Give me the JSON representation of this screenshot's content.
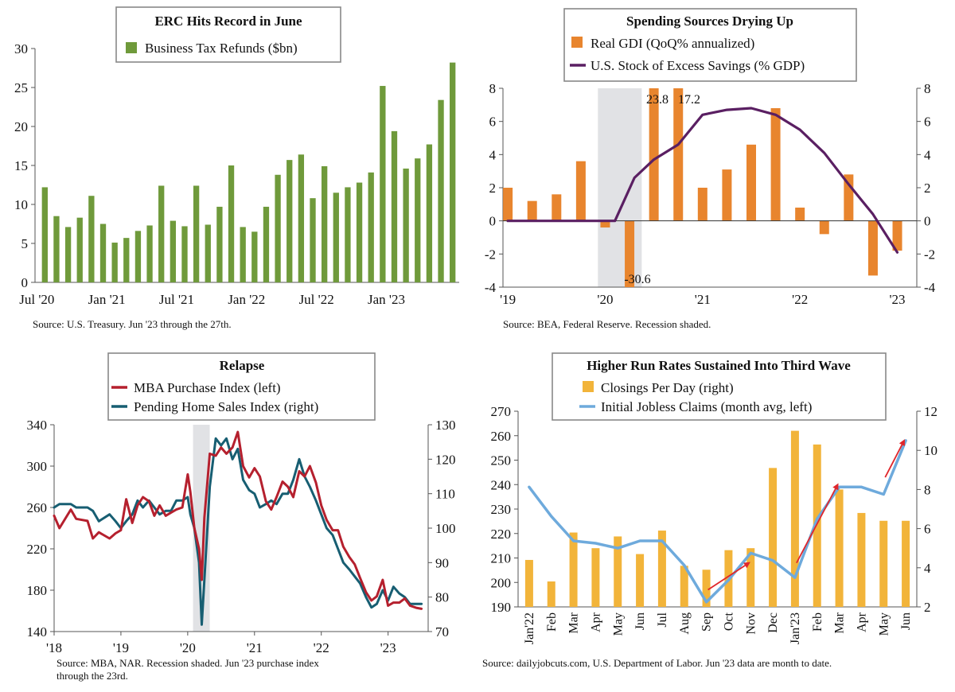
{
  "chart_data": [
    {
      "type": "bar",
      "title": "ERC Hits Record in June",
      "series": [
        {
          "name": "Business Tax Refunds ($bn)",
          "values": [
            12.2,
            8.5,
            7.1,
            8.3,
            11.1,
            7.5,
            5.1,
            5.7,
            6.6,
            7.3,
            12.4,
            7.9,
            7.2,
            12.4,
            7.4,
            9.7,
            15.0,
            7.1,
            6.5,
            9.7,
            13.8,
            15.7,
            16.4,
            10.8,
            14.9,
            11.5,
            12.2,
            12.8,
            14.1,
            25.2,
            19.4,
            14.6,
            15.9,
            17.7,
            23.4,
            28.2
          ]
        }
      ],
      "x_tick_labels": [
        "Jul '20",
        "Jan '21",
        "Jul '21",
        "Jan '22",
        "Jul '22",
        "Jan '23"
      ],
      "y_ticks": [
        "0",
        "5",
        "10",
        "15",
        "20",
        "25",
        "30"
      ],
      "ylim": [
        0,
        30
      ],
      "bar_color": "#6f9a3b",
      "source": "Source: U.S. Treasury. Jun '23 through the 27th."
    },
    {
      "type": "bar",
      "title": "Spending Sources Drying Up",
      "series": [
        {
          "name": "Real GDI (QoQ% annualized)",
          "type": "bar",
          "x": [
            2019.0,
            2019.25,
            2019.5,
            2019.75,
            2020.0,
            2020.25,
            2020.5,
            2020.75,
            2021.0,
            2021.25,
            2021.5,
            2021.75,
            2022.0,
            2022.25,
            2022.5,
            2022.75,
            2023.0
          ],
          "values": [
            2.0,
            1.2,
            1.6,
            3.6,
            -0.4,
            -30.6,
            23.8,
            17.2,
            2.0,
            3.1,
            4.6,
            6.8,
            0.8,
            -0.8,
            2.8,
            -3.3,
            -1.8
          ],
          "color": "#e8852e"
        },
        {
          "name": "U.S. Stock of Excess Savings (% GDP)",
          "type": "line",
          "x": [
            2019.0,
            2019.5,
            2020.0,
            2020.1,
            2020.3,
            2020.5,
            2020.75,
            2021.0,
            2021.25,
            2021.5,
            2021.75,
            2022.0,
            2022.25,
            2022.5,
            2022.75,
            2023.0
          ],
          "values": [
            0.0,
            0.0,
            0.0,
            0.0,
            2.6,
            3.7,
            4.6,
            6.4,
            6.7,
            6.8,
            6.4,
            5.5,
            4.1,
            2.2,
            0.4,
            -1.9
          ],
          "color": "#5a1f62"
        }
      ],
      "annotations": [
        "23.8",
        "17.2",
        "-30.6"
      ],
      "x_tick_labels": [
        "'19",
        "'20",
        "'21",
        "'22",
        "'23"
      ],
      "y_ticks_left": [
        "8",
        "6",
        "4",
        "2",
        "0",
        "-2",
        "-4"
      ],
      "y_ticks_right": [
        "8",
        "6",
        "4",
        "2",
        "0",
        "-2",
        "-4"
      ],
      "ylim": [
        -4,
        8
      ],
      "xlim": [
        2018.95,
        2023.2
      ],
      "recession": [
        2019.925,
        2020.375
      ],
      "source": "Source: BEA, Federal Reserve. Recession shaded."
    },
    {
      "type": "line",
      "title": "Relapse",
      "series": [
        {
          "name": "MBA Purchase Index (left)",
          "axis": "left",
          "color": "#b5202e",
          "x": [
            2018.0,
            2018.08,
            2018.25,
            2018.33,
            2018.5,
            2018.58,
            2018.67,
            2018.83,
            2018.92,
            2019.0,
            2019.08,
            2019.17,
            2019.25,
            2019.33,
            2019.42,
            2019.5,
            2019.58,
            2019.67,
            2019.75,
            2019.83,
            2019.92,
            2020.0,
            2020.04,
            2020.1,
            2020.17,
            2020.21,
            2020.25,
            2020.33,
            2020.42,
            2020.5,
            2020.58,
            2020.67,
            2020.75,
            2020.83,
            2020.92,
            2021.0,
            2021.08,
            2021.17,
            2021.25,
            2021.33,
            2021.42,
            2021.5,
            2021.58,
            2021.67,
            2021.75,
            2021.83,
            2021.92,
            2022.0,
            2022.08,
            2022.17,
            2022.25,
            2022.33,
            2022.42,
            2022.5,
            2022.58,
            2022.67,
            2022.75,
            2022.83,
            2022.92,
            2023.0,
            2023.08,
            2023.17,
            2023.25,
            2023.33,
            2023.42,
            2023.5
          ],
          "values": [
            252,
            240,
            258,
            249,
            247,
            230,
            236,
            230,
            235,
            238,
            268,
            245,
            262,
            270,
            266,
            252,
            262,
            252,
            255,
            258,
            260,
            292,
            275,
            240,
            220,
            190,
            250,
            312,
            310,
            318,
            312,
            318,
            333,
            300,
            289,
            298,
            290,
            266,
            258,
            270,
            285,
            280,
            270,
            295,
            290,
            300,
            284,
            262,
            248,
            238,
            238,
            222,
            212,
            205,
            192,
            178,
            170,
            174,
            190,
            165,
            168,
            168,
            172,
            165,
            163,
            162
          ]
        },
        {
          "name": "Pending Home Sales Index (right)",
          "axis": "right",
          "color": "#175e72",
          "x": [
            2018.0,
            2018.08,
            2018.25,
            2018.33,
            2018.5,
            2018.58,
            2018.67,
            2018.83,
            2018.92,
            2019.0,
            2019.08,
            2019.17,
            2019.25,
            2019.33,
            2019.42,
            2019.5,
            2019.58,
            2019.67,
            2019.75,
            2019.83,
            2019.92,
            2020.0,
            2020.04,
            2020.1,
            2020.17,
            2020.21,
            2020.25,
            2020.33,
            2020.42,
            2020.5,
            2020.58,
            2020.67,
            2020.75,
            2020.83,
            2020.92,
            2021.0,
            2021.08,
            2021.17,
            2021.25,
            2021.33,
            2021.42,
            2021.5,
            2021.58,
            2021.67,
            2021.75,
            2021.83,
            2021.92,
            2022.0,
            2022.08,
            2022.17,
            2022.25,
            2022.33,
            2022.42,
            2022.5,
            2022.58,
            2022.67,
            2022.75,
            2022.83,
            2022.92,
            2023.0,
            2023.08,
            2023.17,
            2023.25,
            2023.33,
            2023.42,
            2023.5
          ],
          "values": [
            106,
            107,
            107,
            106,
            106,
            105,
            102,
            104,
            102,
            100,
            102,
            104,
            108,
            106,
            108,
            106,
            104,
            105,
            105,
            108,
            108,
            109,
            104,
            100,
            90,
            72,
            85,
            112,
            126,
            124,
            126,
            120,
            123,
            114,
            111,
            110,
            106,
            107,
            108,
            107,
            110,
            110,
            114,
            120,
            115,
            112,
            108,
            104,
            100,
            98,
            94,
            90,
            88,
            86,
            84,
            80,
            77,
            78,
            82,
            79,
            83,
            81,
            80,
            78,
            78,
            78
          ]
        }
      ],
      "x_tick_labels": [
        "'18",
        "'19",
        "'20",
        "'21",
        "'22",
        "'23"
      ],
      "y_ticks_left": [
        "340",
        "300",
        "260",
        "220",
        "180",
        "140"
      ],
      "y_ticks_right": [
        "130",
        "120",
        "110",
        "100",
        "90",
        "80",
        "70"
      ],
      "ylim_left": [
        140,
        340
      ],
      "ylim_right": [
        70,
        130
      ],
      "xlim": [
        2018.0,
        2023.6
      ],
      "recession": [
        2020.08,
        2020.33
      ],
      "source": "Source: MBA, NAR. Recession shaded. Jun '23 purchase index through the 23rd."
    },
    {
      "type": "bar",
      "title": "Higher Run Rates Sustained Into Third Wave",
      "categories": [
        "Jan'22",
        "Feb",
        "Mar",
        "Apr",
        "May",
        "Jun",
        "Jul",
        "Aug",
        "Sep",
        "Oct",
        "Nov",
        "Dec",
        "Jan'23",
        "Feb",
        "Mar",
        "Apr",
        "May",
        "Jun"
      ],
      "series": [
        {
          "name": "Closings Per Day (right)",
          "type": "bar",
          "axis": "right",
          "color": "#f2b43a",
          "values": [
            4.4,
            3.3,
            5.8,
            5.0,
            5.6,
            4.7,
            5.9,
            4.1,
            3.9,
            4.9,
            5.0,
            9.1,
            11.0,
            10.3,
            8.0,
            6.8,
            6.4,
            6.4
          ]
        },
        {
          "name": "Initial Jobless Claims (month avg, left)",
          "type": "line",
          "axis": "left",
          "color": "#6eaadc",
          "values": [
            239,
            227,
            217,
            216,
            214,
            217,
            217,
            207,
            192,
            201,
            212,
            209,
            202,
            226,
            239,
            239,
            236,
            258
          ]
        }
      ],
      "y_ticks_left": [
        "270",
        "260",
        "250",
        "240",
        "230",
        "220",
        "210",
        "200",
        "190"
      ],
      "y_ticks_right": [
        "12",
        "10",
        "8",
        "6",
        "4",
        "2"
      ],
      "ylim_left": [
        190,
        270
      ],
      "ylim_right": [
        2,
        12
      ],
      "arrow_color": "#e0262b",
      "source": "Source: dailyjobcuts.com, U.S. Department of Labor. Jun '23 data are month to date."
    }
  ]
}
